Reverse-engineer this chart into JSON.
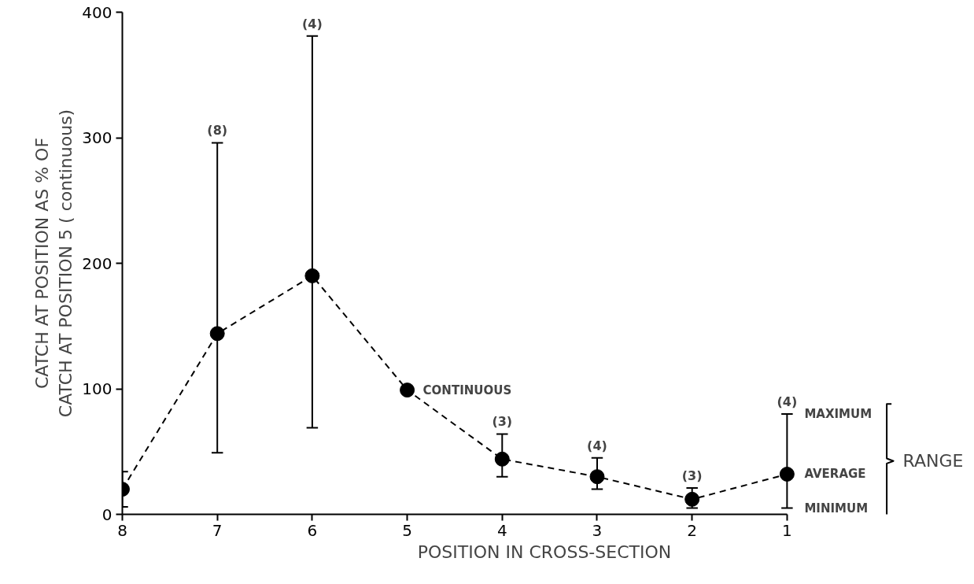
{
  "chart_data": {
    "type": "line",
    "xlabel": "POSITION IN CROSS-SECTION",
    "ylabel": "CATCH AT POSITION AS % OF\nCATCH AT POSITION 5 ( continuous)",
    "x": [
      8,
      7,
      6,
      5,
      4,
      3,
      2,
      1
    ],
    "series": [
      {
        "color": "#000000",
        "values": [
          20,
          144,
          190,
          99,
          44,
          30,
          12,
          32
        ],
        "errors": [
          [
            6,
            34
          ],
          [
            49,
            296
          ],
          [
            69,
            381
          ],
          null,
          [
            30,
            64
          ],
          [
            20,
            45
          ],
          [
            5,
            21
          ],
          [
            5,
            80
          ]
        ]
      }
    ],
    "xlim": [
      8,
      1
    ],
    "xticks": [
      8,
      7,
      6,
      5,
      4,
      3,
      2,
      1
    ],
    "ylim": [
      0,
      400
    ],
    "yticks": [
      0,
      100,
      200,
      300,
      400
    ],
    "grid": false,
    "marker": "circle",
    "line_style": "dashed",
    "annotations": [
      {
        "text": "(8)",
        "x": 7,
        "y": 296
      },
      {
        "text": "(4)",
        "x": 6,
        "y": 381
      },
      {
        "text": "CONTINUOUS",
        "x": 5,
        "y": 99
      },
      {
        "text": "(3)",
        "x": 4,
        "y": 64
      },
      {
        "text": "(4)",
        "x": 3,
        "y": 45
      },
      {
        "text": "(3)",
        "x": 2,
        "y": 21
      },
      {
        "text": "(4)",
        "x": 1,
        "y": 80
      },
      {
        "text": "MAXIMUM",
        "x": 1,
        "y": 80
      },
      {
        "text": "AVERAGE",
        "x": 1,
        "y": 32
      },
      {
        "text": "MINIMUM",
        "x": 1,
        "y": 5
      },
      "RANGE"
    ]
  }
}
